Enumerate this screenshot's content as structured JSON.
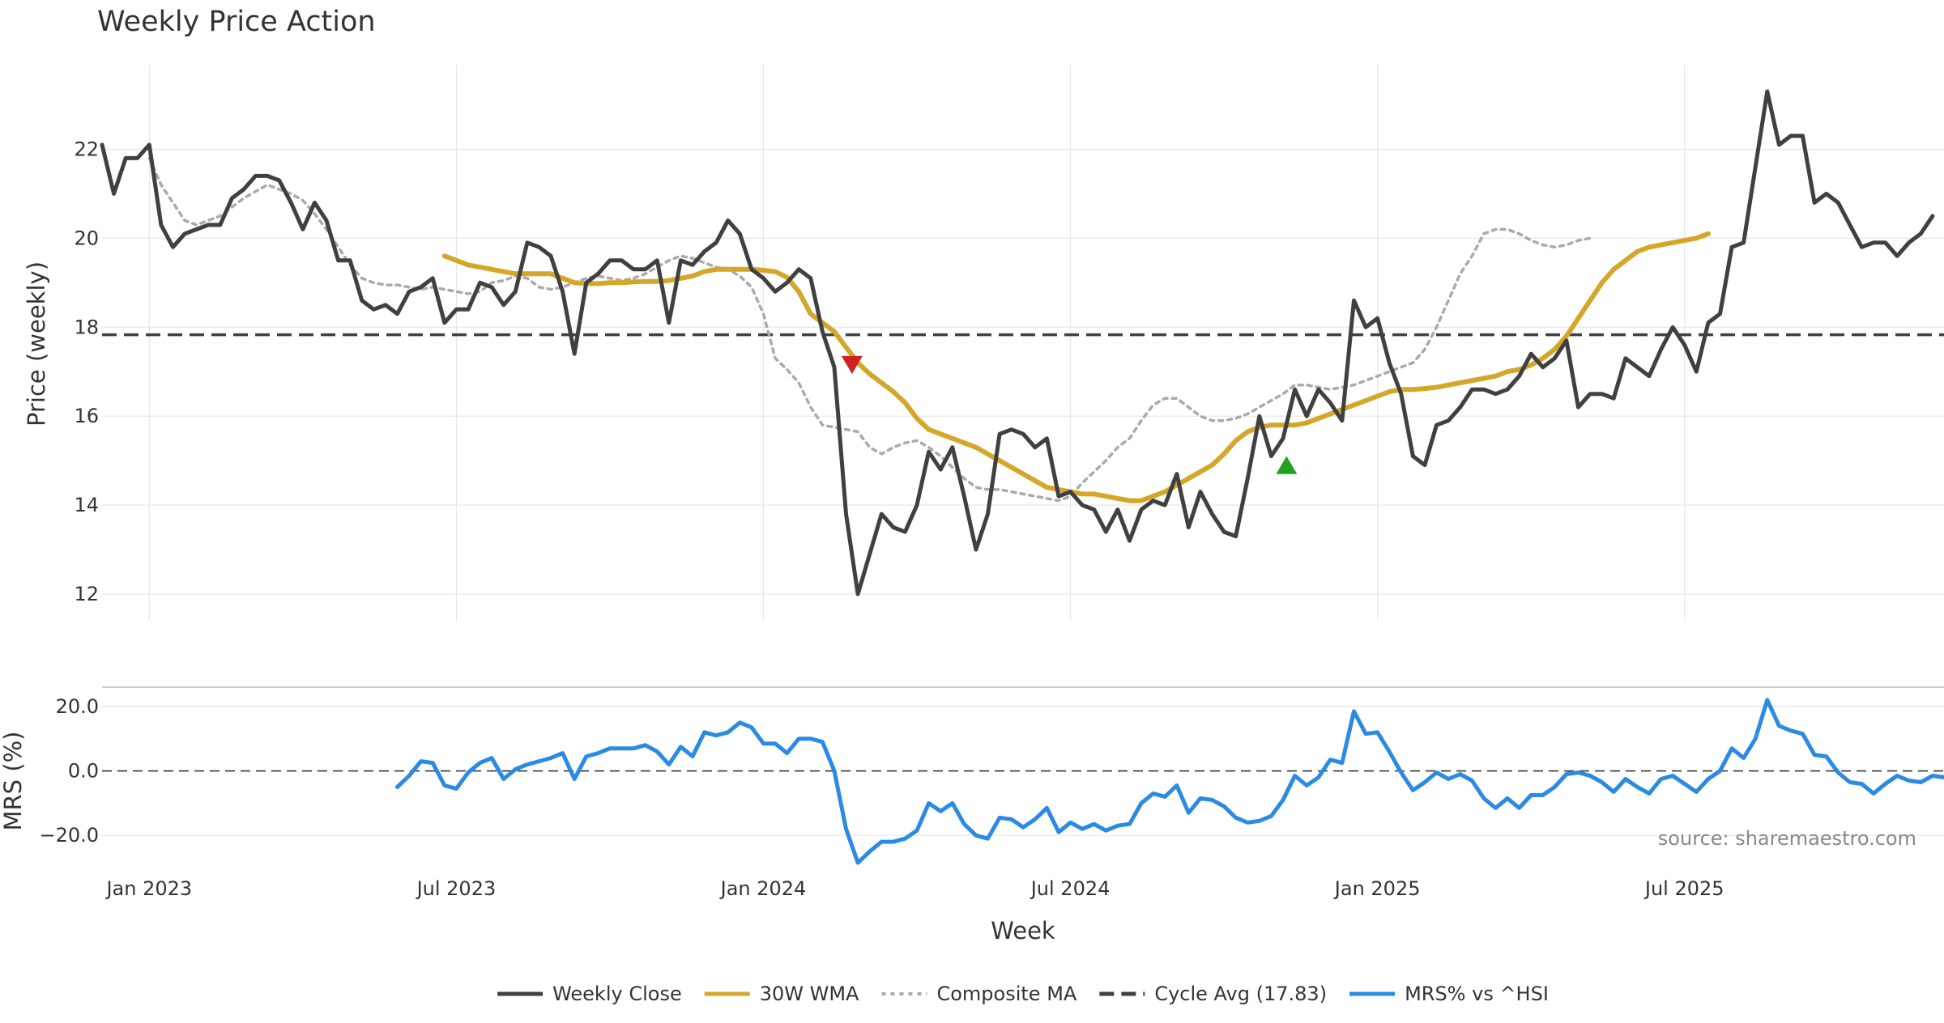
{
  "chart_data": {
    "type": "line",
    "title": "Weekly Price Action",
    "source": "source: sharemaestro.com",
    "xlabel": "Week",
    "x_tick_labels": [
      "Jan 2023",
      "Jul 2023",
      "Jan 2024",
      "Jul 2024",
      "Jan 2025",
      "Jul 2025"
    ],
    "x_tick_weeks": [
      4,
      30,
      56,
      82,
      108,
      134
    ],
    "price_panel": {
      "ylabel": "Price (weekly)",
      "ylim": [
        11.4,
        23.9
      ],
      "yticks": [
        12,
        14,
        16,
        18,
        20,
        22
      ],
      "ytick_labels": [
        "12",
        "14",
        "16",
        "18",
        "20",
        22
      ],
      "cycle_avg": 17.83,
      "series": [
        {
          "name": "Weekly Close",
          "color": "#404040",
          "start_week": 0,
          "values": [
            22.1,
            21.0,
            21.8,
            21.8,
            22.1,
            20.3,
            19.8,
            20.1,
            20.2,
            20.3,
            20.3,
            20.9,
            21.1,
            21.4,
            21.4,
            21.3,
            20.8,
            20.2,
            20.8,
            20.4,
            19.5,
            19.5,
            18.6,
            18.4,
            18.5,
            18.3,
            18.8,
            18.9,
            19.1,
            18.1,
            18.4,
            18.4,
            19.0,
            18.9,
            18.5,
            18.8,
            19.9,
            19.8,
            19.6,
            18.8,
            17.4,
            19.0,
            19.2,
            19.5,
            19.5,
            19.3,
            19.3,
            19.5,
            18.1,
            19.5,
            19.4,
            19.7,
            19.9,
            20.4,
            20.1,
            19.3,
            19.1,
            18.8,
            19.0,
            19.3,
            19.1,
            17.9,
            17.1,
            13.8,
            12.0,
            12.9,
            13.8,
            13.5,
            13.4,
            14.0,
            15.2,
            14.8,
            15.3,
            14.2,
            13.0,
            13.8,
            15.6,
            15.7,
            15.6,
            15.3,
            15.5,
            14.2,
            14.3,
            14.0,
            13.9,
            13.4,
            13.9,
            13.2,
            13.9,
            14.1,
            14.0,
            14.7,
            13.5,
            14.3,
            13.8,
            13.4,
            13.3,
            14.6,
            16.0,
            15.1,
            15.5,
            16.6,
            16.0,
            16.6,
            16.3,
            15.9,
            18.6,
            18.0,
            18.2,
            17.2,
            16.5,
            15.1,
            14.9,
            15.8,
            15.9,
            16.2,
            16.6,
            16.6,
            16.5,
            16.6,
            16.9,
            17.4,
            17.1,
            17.3,
            17.7,
            16.2,
            16.5,
            16.5,
            16.4,
            17.3,
            17.1,
            16.9,
            17.5,
            18.0,
            17.6,
            17.0,
            18.1,
            18.3,
            19.8,
            19.9,
            21.6,
            23.3,
            22.1,
            22.3,
            22.3,
            20.8,
            21.0,
            20.8,
            20.3,
            19.8,
            19.9,
            19.9,
            19.6,
            19.9,
            20.1,
            20.5
          ]
        },
        {
          "name": "30W WMA",
          "color": "#d4a62a",
          "start_week": 29,
          "values": [
            19.6,
            19.5,
            19.4,
            19.35,
            19.3,
            19.25,
            19.2,
            19.2,
            19.2,
            19.2,
            19.1,
            19.0,
            18.98,
            18.98,
            19.0,
            19.0,
            19.02,
            19.03,
            19.03,
            19.05,
            19.1,
            19.15,
            19.25,
            19.3,
            19.3,
            19.3,
            19.3,
            19.28,
            19.25,
            19.12,
            18.8,
            18.3,
            18.1,
            17.9,
            17.55,
            17.2,
            16.95,
            16.75,
            16.55,
            16.3,
            15.95,
            15.7,
            15.6,
            15.5,
            15.4,
            15.3,
            15.15,
            15.0,
            14.85,
            14.7,
            14.55,
            14.4,
            14.35,
            14.3,
            14.25,
            14.25,
            14.2,
            14.15,
            14.1,
            14.1,
            14.2,
            14.3,
            14.45,
            14.6,
            14.75,
            14.9,
            15.15,
            15.45,
            15.65,
            15.75,
            15.8,
            15.8,
            15.8,
            15.85,
            15.95,
            16.05,
            16.15,
            16.25,
            16.35,
            16.45,
            16.55,
            16.6,
            16.6,
            16.62,
            16.65,
            16.7,
            16.75,
            16.8,
            16.85,
            16.9,
            17.0,
            17.05,
            17.15,
            17.3,
            17.5,
            17.8,
            18.2,
            18.6,
            19.0,
            19.3,
            19.5,
            19.7,
            19.8,
            19.85,
            19.9,
            19.95,
            20.0,
            20.1
          ]
        },
        {
          "name": "Composite MA",
          "color": "#aaaaaa",
          "start_week": 4,
          "values": [
            21.8,
            21.2,
            20.8,
            20.4,
            20.3,
            20.4,
            20.5,
            20.7,
            20.9,
            21.05,
            21.2,
            21.1,
            21.0,
            20.85,
            20.55,
            20.2,
            19.8,
            19.4,
            19.1,
            19.0,
            18.95,
            18.95,
            18.9,
            18.85,
            18.9,
            18.85,
            18.8,
            18.75,
            18.8,
            19.0,
            19.05,
            19.15,
            19.1,
            18.9,
            18.85,
            18.9,
            19.0,
            19.1,
            19.15,
            19.1,
            19.05,
            19.1,
            19.2,
            19.35,
            19.5,
            19.6,
            19.55,
            19.45,
            19.35,
            19.3,
            19.15,
            18.9,
            18.3,
            17.3,
            17.05,
            16.75,
            16.2,
            15.8,
            15.75,
            15.7,
            15.65,
            15.3,
            15.15,
            15.3,
            15.4,
            15.45,
            15.3,
            15.1,
            14.85,
            14.6,
            14.4,
            14.35,
            14.35,
            14.3,
            14.25,
            14.2,
            14.15,
            14.1,
            14.2,
            14.5,
            14.75,
            15.0,
            15.3,
            15.5,
            15.9,
            16.25,
            16.4,
            16.4,
            16.2,
            16.0,
            15.9,
            15.9,
            15.95,
            16.05,
            16.2,
            16.35,
            16.5,
            16.7,
            16.7,
            16.65,
            16.6,
            16.65,
            16.7,
            16.8,
            16.9,
            17.0,
            17.1,
            17.2,
            17.5,
            18.0,
            18.6,
            19.2,
            19.6,
            20.1,
            20.2,
            20.2,
            20.1,
            19.95,
            19.85,
            19.8,
            19.85,
            19.95,
            20.0
          ]
        }
      ],
      "markers": [
        {
          "type": "sell",
          "shape": "down-triangle",
          "week": 63.5,
          "value": 17.15,
          "color": "#cc2222"
        },
        {
          "type": "buy",
          "shape": "up-triangle",
          "week": 100.3,
          "value": 14.9,
          "color": "#22a022"
        }
      ]
    },
    "mrs_panel": {
      "ylabel": "MRS (%)",
      "ylim": [
        -30,
        26
      ],
      "yticks": [
        20,
        0,
        -20
      ],
      "ytick_labels": [
        "20.0",
        "0.0",
        "−20.0"
      ],
      "series": {
        "name": "MRS% vs ^HSI",
        "color": "#2b8ae3",
        "start_week": 25,
        "values": [
          -5.0,
          -1.5,
          3.0,
          2.5,
          -4.5,
          -5.5,
          -0.5,
          2.5,
          4.0,
          -2.5,
          0.5,
          2.0,
          3.0,
          4.0,
          5.5,
          -2.5,
          4.5,
          5.5,
          7.0,
          7.0,
          7.0,
          8.0,
          6.0,
          2.0,
          7.5,
          4.5,
          12.0,
          11.0,
          12.0,
          15.0,
          13.5,
          8.5,
          8.5,
          5.5,
          10.0,
          10.0,
          9.0,
          0.0,
          -18.0,
          -28.5,
          -25.0,
          -22.0,
          -22.0,
          -21.0,
          -18.5,
          -10.0,
          -12.5,
          -10.0,
          -16.5,
          -20.0,
          -21.0,
          -14.5,
          -15.0,
          -17.5,
          -15.0,
          -11.5,
          -19.0,
          -16.0,
          -18.0,
          -16.5,
          -18.5,
          -17.0,
          -16.5,
          -10.0,
          -7.0,
          -8.0,
          -4.5,
          -13.0,
          -8.5,
          -9.0,
          -11.0,
          -14.5,
          -16.0,
          -15.5,
          -14.0,
          -9.0,
          -1.5,
          -4.5,
          -2.0,
          3.5,
          2.5,
          18.5,
          11.5,
          12.0,
          6.0,
          -0.5,
          -6.0,
          -3.5,
          -0.5,
          -2.5,
          -1.0,
          -3.0,
          -8.5,
          -11.5,
          -8.5,
          -11.5,
          -7.5,
          -7.5,
          -5.0,
          -1.0,
          -0.5,
          -1.5,
          -3.5,
          -6.5,
          -2.5,
          -5.0,
          -7.0,
          -2.5,
          -1.5,
          -4.0,
          -6.5,
          -2.5,
          0.0,
          7.0,
          4.0,
          10.0,
          22.0,
          14.0,
          12.5,
          11.5,
          5.0,
          4.5,
          -0.5,
          -3.5,
          -4.0,
          -7.0,
          -4.0,
          -1.5,
          -3.0,
          -3.5,
          -1.5,
          -2.0
        ]
      }
    },
    "legend": [
      {
        "label": "Weekly Close",
        "color": "#404040",
        "style": "solid"
      },
      {
        "label": "30W WMA",
        "color": "#d4a62a",
        "style": "solid"
      },
      {
        "label": "Composite MA",
        "color": "#aaaaaa",
        "style": "dotted"
      },
      {
        "label": "Cycle Avg (17.83)",
        "color": "#404040",
        "style": "dashed"
      },
      {
        "label": "MRS% vs ^HSI",
        "color": "#2b8ae3",
        "style": "solid"
      }
    ],
    "legend_position": "bottom-center"
  }
}
